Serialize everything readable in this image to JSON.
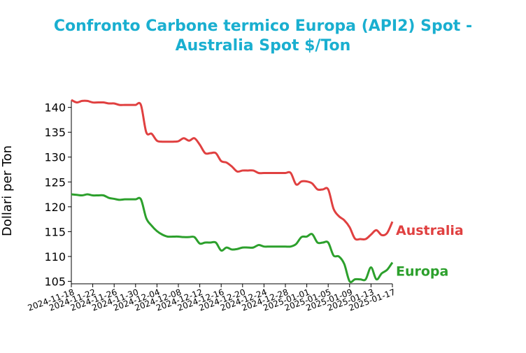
{
  "title_line1": "Confronto Carbone termico Europa (API2) Spot -",
  "title_line2": "Australia Spot $/Ton",
  "colors": {
    "title": "#1aafd0",
    "australia": "#e04040",
    "europa": "#2ca02c"
  },
  "chart_data": {
    "type": "line",
    "title": "Confronto Carbone termico Europa (API2) Spot - Australia Spot $/Ton",
    "xlabel": "",
    "ylabel": "Dollari per Ton",
    "ylim": [
      104.5,
      141.5
    ],
    "xlim": [
      "2024-11-18",
      "2025-01-17"
    ],
    "yticks": [
      105,
      110,
      115,
      120,
      125,
      130,
      135,
      140
    ],
    "xticks": [
      "2024-11-18",
      "2024-11-22",
      "2024-11-26",
      "2024-11-30",
      "2024-12-04",
      "2024-12-08",
      "2024-12-12",
      "2024-12-16",
      "2024-12-20",
      "2024-12-24",
      "2024-12-28",
      "2025-01-01",
      "2025-01-05",
      "2025-01-09",
      "2025-01-13",
      "2025-01-17"
    ],
    "grid": false,
    "series": [
      {
        "name": "Australia",
        "points": [
          [
            "2024-11-18",
            141.5
          ],
          [
            "2024-11-19",
            141.0
          ],
          [
            "2024-11-20",
            141.3
          ],
          [
            "2024-11-21",
            141.3
          ],
          [
            "2024-11-22",
            141.0
          ],
          [
            "2024-11-23",
            141.0
          ],
          [
            "2024-11-24",
            141.0
          ],
          [
            "2024-11-25",
            140.8
          ],
          [
            "2024-11-26",
            140.8
          ],
          [
            "2024-11-27",
            140.5
          ],
          [
            "2024-11-28",
            140.5
          ],
          [
            "2024-11-29",
            140.5
          ],
          [
            "2024-11-30",
            140.5
          ],
          [
            "2024-12-01",
            140.5
          ],
          [
            "2024-12-02",
            135.0
          ],
          [
            "2024-12-03",
            134.7
          ],
          [
            "2024-12-04",
            133.3
          ],
          [
            "2024-12-05",
            133.1
          ],
          [
            "2024-12-06",
            133.1
          ],
          [
            "2024-12-07",
            133.1
          ],
          [
            "2024-12-08",
            133.2
          ],
          [
            "2024-12-09",
            133.8
          ],
          [
            "2024-12-10",
            133.3
          ],
          [
            "2024-12-11",
            133.8
          ],
          [
            "2024-12-12",
            132.5
          ],
          [
            "2024-12-13",
            130.8
          ],
          [
            "2024-12-14",
            130.8
          ],
          [
            "2024-12-15",
            130.8
          ],
          [
            "2024-12-16",
            129.2
          ],
          [
            "2024-12-17",
            128.9
          ],
          [
            "2024-12-18",
            128.1
          ],
          [
            "2024-12-19",
            127.1
          ],
          [
            "2024-12-20",
            127.3
          ],
          [
            "2024-12-21",
            127.3
          ],
          [
            "2024-12-22",
            127.3
          ],
          [
            "2024-12-23",
            126.8
          ],
          [
            "2024-12-24",
            126.8
          ],
          [
            "2024-12-25",
            126.8
          ],
          [
            "2024-12-26",
            126.8
          ],
          [
            "2024-12-27",
            126.8
          ],
          [
            "2024-12-28",
            126.8
          ],
          [
            "2024-12-29",
            126.8
          ],
          [
            "2024-12-30",
            124.5
          ],
          [
            "2024-12-31",
            125.1
          ],
          [
            "2025-01-01",
            125.1
          ],
          [
            "2025-01-02",
            124.7
          ],
          [
            "2025-01-03",
            123.5
          ],
          [
            "2025-01-04",
            123.5
          ],
          [
            "2025-01-05",
            123.5
          ],
          [
            "2025-01-06",
            119.6
          ],
          [
            "2025-01-07",
            118.1
          ],
          [
            "2025-01-08",
            117.3
          ],
          [
            "2025-01-09",
            115.9
          ],
          [
            "2025-01-10",
            113.6
          ],
          [
            "2025-01-11",
            113.5
          ],
          [
            "2025-01-12",
            113.5
          ],
          [
            "2025-01-13",
            114.4
          ],
          [
            "2025-01-14",
            115.3
          ],
          [
            "2025-01-15",
            114.3
          ],
          [
            "2025-01-16",
            114.7
          ],
          [
            "2025-01-17",
            117.0
          ]
        ]
      },
      {
        "name": "Europa",
        "points": [
          [
            "2024-11-18",
            122.5
          ],
          [
            "2024-11-19",
            122.4
          ],
          [
            "2024-11-20",
            122.3
          ],
          [
            "2024-11-21",
            122.5
          ],
          [
            "2024-11-22",
            122.3
          ],
          [
            "2024-11-23",
            122.3
          ],
          [
            "2024-11-24",
            122.3
          ],
          [
            "2024-11-25",
            121.8
          ],
          [
            "2024-11-26",
            121.6
          ],
          [
            "2024-11-27",
            121.4
          ],
          [
            "2024-11-28",
            121.5
          ],
          [
            "2024-11-29",
            121.5
          ],
          [
            "2024-11-30",
            121.5
          ],
          [
            "2024-12-01",
            121.5
          ],
          [
            "2024-12-02",
            117.7
          ],
          [
            "2024-12-03",
            116.2
          ],
          [
            "2024-12-04",
            115.1
          ],
          [
            "2024-12-05",
            114.4
          ],
          [
            "2024-12-06",
            114.0
          ],
          [
            "2024-12-07",
            114.0
          ],
          [
            "2024-12-08",
            114.0
          ],
          [
            "2024-12-09",
            113.9
          ],
          [
            "2024-12-10",
            113.9
          ],
          [
            "2024-12-11",
            113.9
          ],
          [
            "2024-12-12",
            112.6
          ],
          [
            "2024-12-13",
            112.8
          ],
          [
            "2024-12-14",
            112.8
          ],
          [
            "2024-12-15",
            112.8
          ],
          [
            "2024-12-16",
            111.2
          ],
          [
            "2024-12-17",
            111.8
          ],
          [
            "2024-12-18",
            111.4
          ],
          [
            "2024-12-19",
            111.5
          ],
          [
            "2024-12-20",
            111.8
          ],
          [
            "2024-12-21",
            111.8
          ],
          [
            "2024-12-22",
            111.8
          ],
          [
            "2024-12-23",
            112.3
          ],
          [
            "2024-12-24",
            112.0
          ],
          [
            "2024-12-25",
            112.0
          ],
          [
            "2024-12-26",
            112.0
          ],
          [
            "2024-12-27",
            112.0
          ],
          [
            "2024-12-28",
            112.0
          ],
          [
            "2024-12-29",
            112.0
          ],
          [
            "2024-12-30",
            112.5
          ],
          [
            "2024-12-31",
            113.9
          ],
          [
            "2025-01-01",
            114.0
          ],
          [
            "2025-01-02",
            114.5
          ],
          [
            "2025-01-03",
            112.8
          ],
          [
            "2025-01-04",
            112.8
          ],
          [
            "2025-01-05",
            112.8
          ],
          [
            "2025-01-06",
            110.2
          ],
          [
            "2025-01-07",
            110.0
          ],
          [
            "2025-01-08",
            108.5
          ],
          [
            "2025-01-09",
            105.0
          ],
          [
            "2025-01-10",
            105.4
          ],
          [
            "2025-01-11",
            105.4
          ],
          [
            "2025-01-12",
            105.4
          ],
          [
            "2025-01-13",
            107.8
          ],
          [
            "2025-01-14",
            105.4
          ],
          [
            "2025-01-15",
            106.6
          ],
          [
            "2025-01-16",
            107.3
          ],
          [
            "2025-01-17",
            108.8
          ]
        ]
      }
    ]
  }
}
